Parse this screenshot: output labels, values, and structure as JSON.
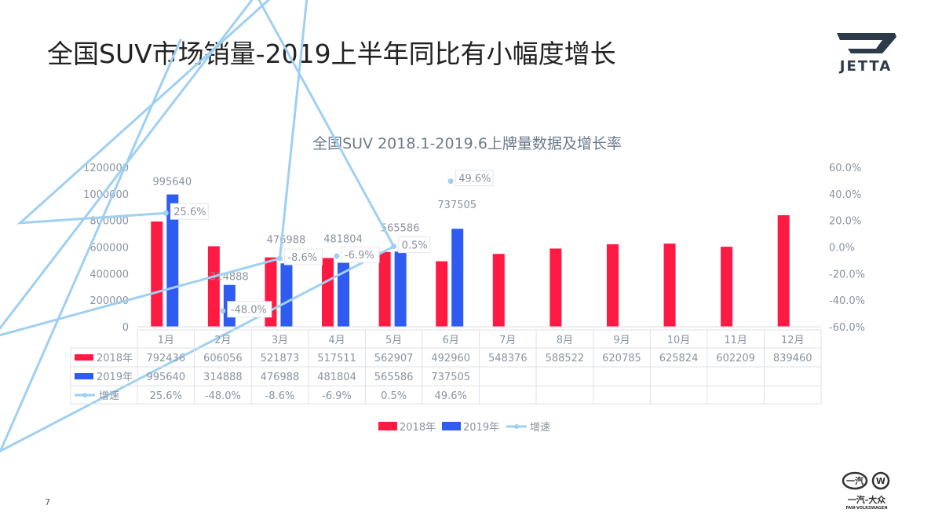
{
  "page": {
    "title": "全国SUV市场销量-2019上半年同比有小幅度增长",
    "page_number": "7"
  },
  "logos": {
    "jetta": "JETTA",
    "faw_cn": "一汽-大众",
    "faw_en": "FAW-VOLKSWAGEN"
  },
  "chart_data": {
    "type": "bar",
    "title": "全国SUV 2018.1-2019.6上牌量数据及增长率",
    "categories": [
      "1月",
      "2月",
      "3月",
      "4月",
      "5月",
      "6月",
      "7月",
      "8月",
      "9月",
      "10月",
      "11月",
      "12月"
    ],
    "series": [
      {
        "name": "2018年",
        "type": "bar",
        "color": "#ff1a44",
        "values": [
          792436,
          606056,
          521873,
          517511,
          562907,
          492960,
          548376,
          588522,
          620785,
          625824,
          602209,
          839460
        ]
      },
      {
        "name": "2019年",
        "type": "bar",
        "color": "#2e5bf0",
        "values": [
          995640,
          314888,
          476988,
          481804,
          565586,
          737505,
          null,
          null,
          null,
          null,
          null,
          null
        ]
      },
      {
        "name": "增速",
        "type": "line",
        "axis": "right",
        "color": "#9fd0f2",
        "values": [
          25.6,
          -48.0,
          -8.6,
          -6.9,
          0.5,
          49.6,
          null,
          null,
          null,
          null,
          null,
          null
        ]
      }
    ],
    "left_axis": {
      "ylim": [
        0,
        1200000
      ],
      "ticks": [
        "0",
        "200000",
        "400000",
        "600000",
        "800000",
        "1000000",
        "1200000"
      ]
    },
    "right_axis": {
      "ylim": [
        -60,
        60
      ],
      "ticks": [
        "-60.0%",
        "-40.0%",
        "-20.0%",
        "0.0%",
        "20.0%",
        "40.0%",
        "60.0%"
      ]
    },
    "legend": {
      "position": "bottom",
      "entries": [
        "2018年",
        "2019年",
        "增速"
      ]
    },
    "data_table": true
  }
}
